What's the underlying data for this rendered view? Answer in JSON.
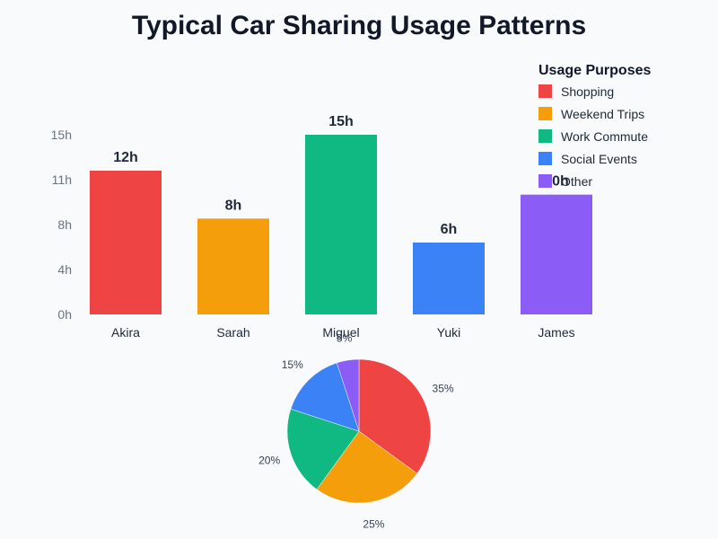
{
  "title": "Typical Car Sharing Usage Patterns",
  "legend": {
    "title": "Usage Purposes",
    "items": [
      {
        "label": "Shopping",
        "color": "#ef4444"
      },
      {
        "label": "Weekend Trips",
        "color": "#f59e0b"
      },
      {
        "label": "Work Commute",
        "color": "#10b981"
      },
      {
        "label": "Social Events",
        "color": "#3b82f6"
      },
      {
        "label": "Other",
        "color": "#8b5cf6"
      }
    ]
  },
  "chart_data": [
    {
      "type": "bar",
      "title": "Typical Car Sharing Usage Patterns",
      "categories": [
        "Akira",
        "Sarah",
        "Miguel",
        "Yuki",
        "James"
      ],
      "values": [
        12,
        8,
        15,
        6,
        10
      ],
      "value_labels": [
        "12h",
        "8h",
        "15h",
        "6h",
        "10h"
      ],
      "colors": [
        "#ef4444",
        "#f59e0b",
        "#10b981",
        "#3b82f6",
        "#8b5cf6"
      ],
      "y_ticks": [
        "0h",
        "4h",
        "8h",
        "11h",
        "15h"
      ],
      "ylim": [
        0,
        15
      ],
      "xlabel": "",
      "ylabel": "",
      "grid": false
    },
    {
      "type": "pie",
      "labels": [
        "Shopping",
        "Weekend Trips",
        "Work Commute",
        "Social Events",
        "Other"
      ],
      "values": [
        35,
        25,
        20,
        15,
        5
      ],
      "value_labels": [
        "35%",
        "25%",
        "20%",
        "15%",
        "5%"
      ],
      "colors": [
        "#ef4444",
        "#f59e0b",
        "#10b981",
        "#3b82f6",
        "#8b5cf6"
      ],
      "legend_position": "top-right"
    }
  ]
}
